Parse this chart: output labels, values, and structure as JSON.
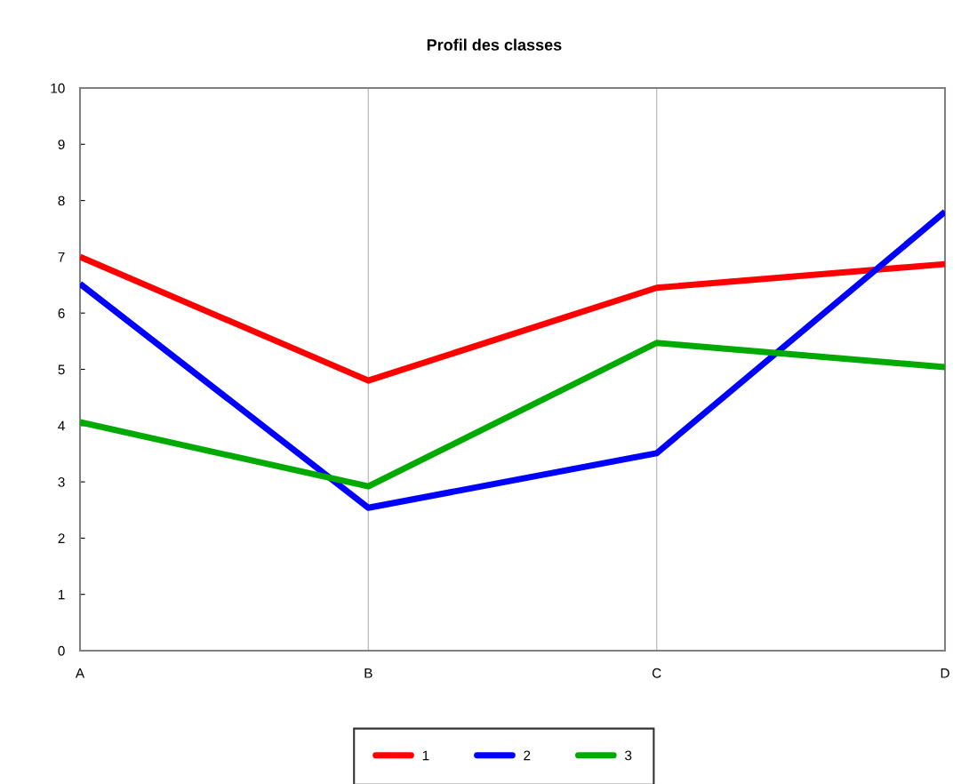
{
  "chart_data": {
    "type": "line",
    "title": "Profil des classes",
    "categories": [
      "A",
      "B",
      "C",
      "D"
    ],
    "series": [
      {
        "name": "1",
        "color": "#ff0000",
        "values": [
          7.0,
          4.8,
          6.45,
          6.87
        ]
      },
      {
        "name": "2",
        "color": "#0000ff",
        "values": [
          6.52,
          2.54,
          3.51,
          7.8
        ]
      },
      {
        "name": "3",
        "color": "#00aa00",
        "values": [
          4.06,
          2.92,
          5.47,
          5.04
        ]
      }
    ],
    "ylim": [
      0,
      10
    ],
    "yticks": [
      0,
      1,
      2,
      3,
      4,
      5,
      6,
      7,
      8,
      9,
      10
    ],
    "grid": "x",
    "legend": "bottom",
    "marker": "none",
    "line_style": "solid"
  }
}
